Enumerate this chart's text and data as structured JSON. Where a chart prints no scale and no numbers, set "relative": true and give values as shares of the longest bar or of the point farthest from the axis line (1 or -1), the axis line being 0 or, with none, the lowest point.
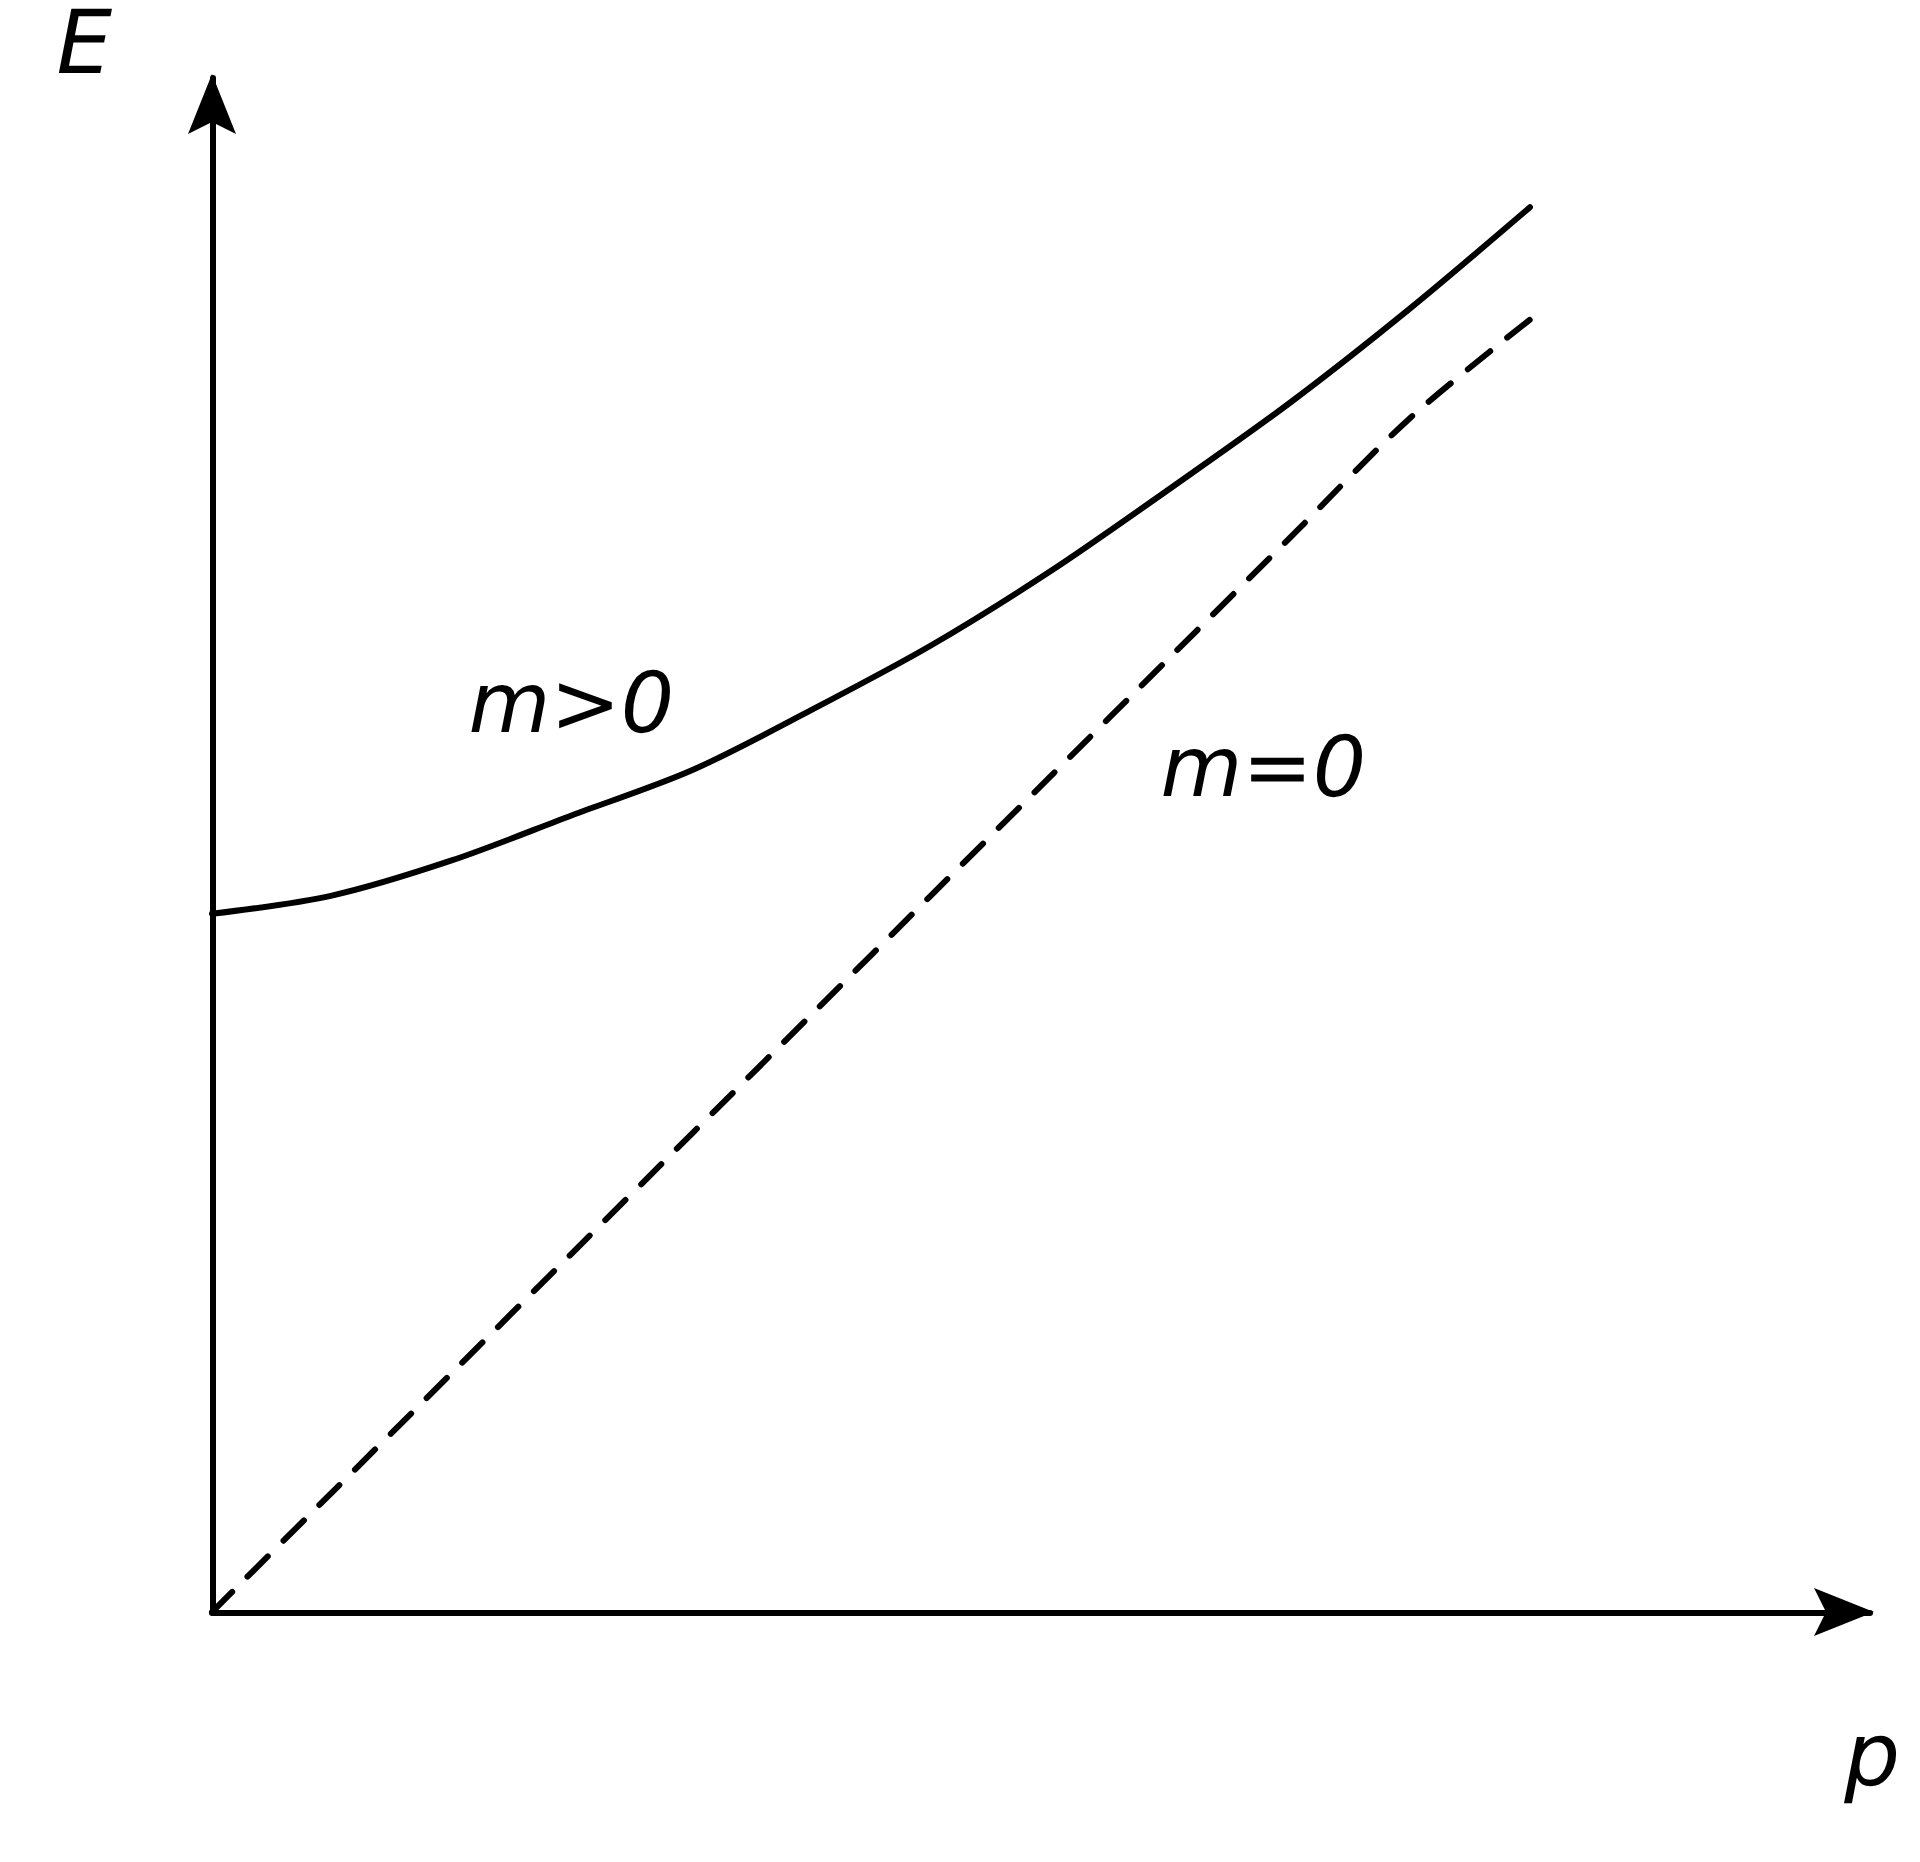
{
  "chart_data": {
    "type": "line",
    "relative": true,
    "xlabel": "p",
    "ylabel": "E",
    "categories": [
      null,
      null,
      null,
      null,
      null,
      null,
      null,
      null,
      null,
      null,
      null,
      null
    ],
    "series": [
      {
        "name": "m>0",
        "color": "#000000",
        "line_style": "solid",
        "values": [
          0.497,
          0.51,
          0.535,
          0.567,
          0.599,
          0.642,
          0.688,
          0.741,
          0.8,
          0.861,
          0.928,
          1
        ]
      },
      {
        "name": "m=0",
        "color": "#000000",
        "line_style": "dashed",
        "values": [
          0,
          0.085,
          0.17,
          0.255,
          0.34,
          0.425,
          0.51,
          0.595,
          0.68,
          0.765,
          0.85,
          0.92
        ]
      }
    ],
    "marker": "none",
    "grid": false,
    "legend": false
  }
}
